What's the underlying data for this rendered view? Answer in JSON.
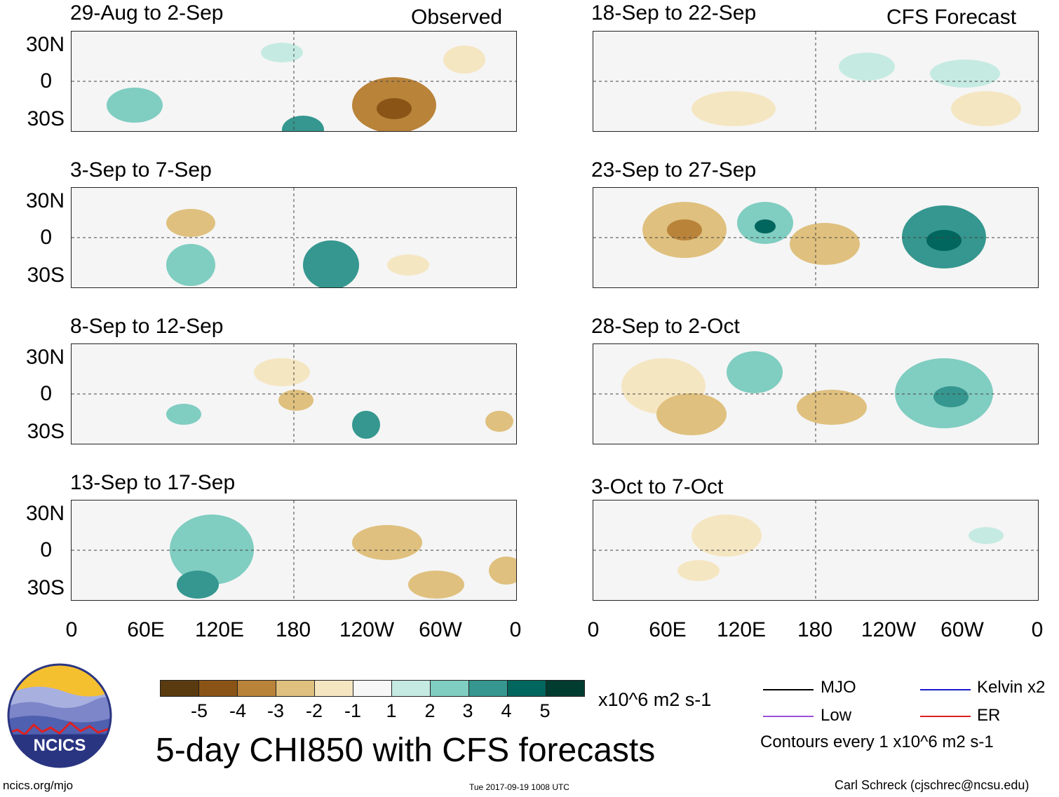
{
  "main_title": "5-day CHI850 with CFS forecasts",
  "units": "x10^6 m2 s-1",
  "contour_note": "Contours every 1 x10^6 m2 s-1",
  "footer": {
    "left": "ncics.org/mjo",
    "center": "Tue 2017-09-19 1008 UTC",
    "right": "Carl Schreck (cjschrec@ncsu.edu)"
  },
  "logo": {
    "text": "NCICS"
  },
  "column_labels": {
    "left": "Observed",
    "right": "CFS Forecast"
  },
  "lat_labels": [
    "30N",
    "0",
    "30S"
  ],
  "lon_labels": [
    "0",
    "60E",
    "120E",
    "180",
    "120W",
    "60W",
    "0"
  ],
  "panels_left": [
    {
      "title": "29-Aug to 2-Sep"
    },
    {
      "title": "3-Sep to 7-Sep"
    },
    {
      "title": "8-Sep to 12-Sep"
    },
    {
      "title": "13-Sep to 17-Sep"
    }
  ],
  "panels_right": [
    {
      "title": "18-Sep to 22-Sep"
    },
    {
      "title": "23-Sep to 27-Sep"
    },
    {
      "title": "28-Sep to 2-Oct"
    },
    {
      "title": "3-Oct to 7-Oct"
    }
  ],
  "colorbar": {
    "ticks": [
      "-5",
      "-4",
      "-3",
      "-2",
      "-1",
      "1",
      "2",
      "3",
      "4",
      "5"
    ],
    "colors": [
      "#5a3a0f",
      "#8a5416",
      "#b9833a",
      "#dfc07e",
      "#f5e6c2",
      "#f7f7f7",
      "#c5eae2",
      "#80cdc1",
      "#35978f",
      "#01665e",
      "#003c30"
    ]
  },
  "legend": [
    {
      "label": "MJO",
      "color": "#000000"
    },
    {
      "label": "Kelvin x2",
      "color": "#1a1acc"
    },
    {
      "label": "Low",
      "color": "#9b4fd6"
    },
    {
      "label": "ER",
      "color": "#e02020"
    }
  ]
}
